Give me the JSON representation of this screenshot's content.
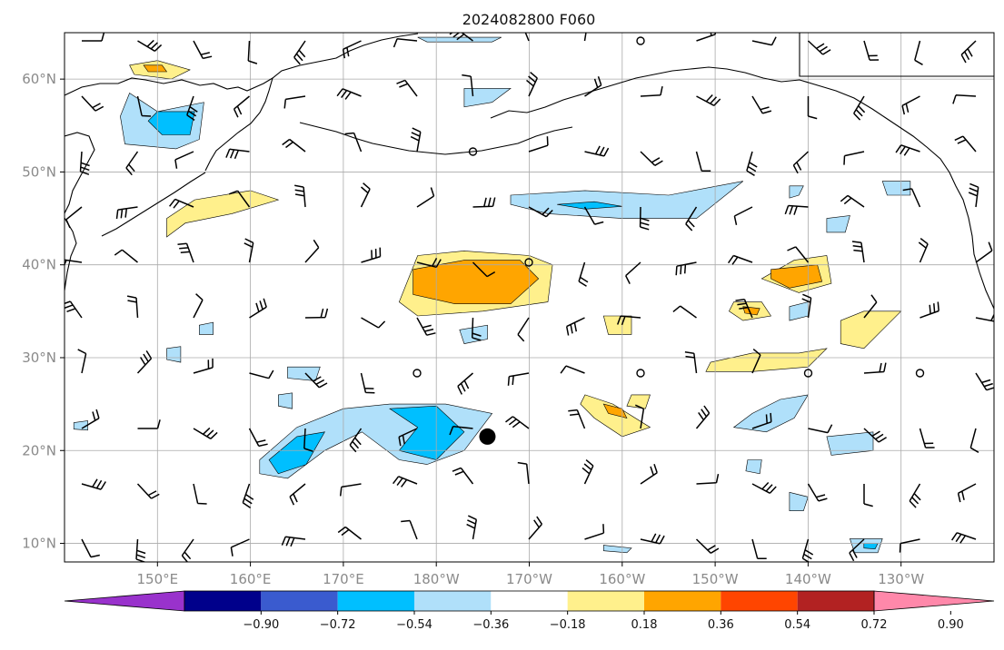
{
  "title": "2024082800 F060",
  "axes": {
    "lat_labels": [
      "10°N",
      "20°N",
      "30°N",
      "40°N",
      "50°N",
      "60°N"
    ],
    "lat_values": [
      10,
      20,
      30,
      40,
      50,
      60
    ],
    "lon_labels": [
      "150°E",
      "160°E",
      "170°E",
      "180°W",
      "170°W",
      "160°W",
      "150°W",
      "140°W",
      "130°W"
    ],
    "lon_values": [
      150,
      160,
      170,
      180,
      190,
      200,
      210,
      220,
      230
    ],
    "lon_range": [
      140,
      240
    ],
    "lat_range": [
      8,
      65
    ],
    "grid": true
  },
  "colorbar": {
    "tick_labels": [
      "−0.90",
      "−0.72",
      "−0.54",
      "−0.36",
      "−0.18",
      "0.18",
      "0.36",
      "0.54",
      "0.72",
      "0.90"
    ],
    "colors": [
      "#9932cc",
      "#00008b",
      "#3a5bcf",
      "#00bfff",
      "#b0e0fa",
      "#ffffff",
      "#fff08c",
      "#ffa500",
      "#ff4500",
      "#b22222",
      "#ff88aa"
    ],
    "extend": "both"
  },
  "markers": {
    "hurricane": {
      "lon": 185.5,
      "lat": 21.5
    }
  },
  "contours": [
    {
      "color": "#b0e0fa",
      "pts": [
        [
          147,
          58.5
        ],
        [
          150,
          56.5
        ],
        [
          155,
          57.5
        ],
        [
          154.5,
          53.5
        ],
        [
          152,
          52.5
        ],
        [
          146.5,
          53
        ],
        [
          146,
          56
        ]
      ]
    },
    {
      "color": "#00bfff",
      "pts": [
        [
          150,
          56.5
        ],
        [
          154,
          56.5
        ],
        [
          153.5,
          54
        ],
        [
          150.5,
          54
        ],
        [
          149,
          55.5
        ]
      ]
    },
    {
      "color": "#fff08c",
      "pts": [
        [
          147,
          61.5
        ],
        [
          150,
          62
        ],
        [
          153.5,
          61
        ],
        [
          151.5,
          60
        ],
        [
          147.5,
          60.5
        ]
      ]
    },
    {
      "color": "#ffa500",
      "pts": [
        [
          148.5,
          61.5
        ],
        [
          150.5,
          61.5
        ],
        [
          151,
          60.8
        ],
        [
          149,
          60.8
        ]
      ]
    },
    {
      "color": "#fff08c",
      "pts": [
        [
          151,
          45
        ],
        [
          154,
          47
        ],
        [
          160,
          48
        ],
        [
          163,
          47
        ],
        [
          158,
          45.5
        ],
        [
          153,
          44.5
        ],
        [
          151,
          43
        ]
      ]
    },
    {
      "color": "#fff08c",
      "pts": [
        [
          178,
          41
        ],
        [
          183,
          41.5
        ],
        [
          190,
          41
        ],
        [
          192.5,
          40
        ],
        [
          192,
          36
        ],
        [
          185,
          35
        ],
        [
          178,
          34.5
        ],
        [
          176,
          36
        ]
      ]
    },
    {
      "color": "#ffa500",
      "pts": [
        [
          177.5,
          39.5
        ],
        [
          183,
          40.5
        ],
        [
          189,
          40.5
        ],
        [
          191,
          38.5
        ],
        [
          188,
          35.8
        ],
        [
          182,
          35.8
        ],
        [
          177.5,
          36.8
        ]
      ]
    },
    {
      "color": "#b0e0fa",
      "pts": [
        [
          188,
          47.5
        ],
        [
          196,
          48
        ],
        [
          205,
          47.5
        ],
        [
          213,
          49
        ],
        [
          208,
          45
        ],
        [
          200,
          45
        ],
        [
          192,
          45.5
        ],
        [
          188,
          46.5
        ]
      ]
    },
    {
      "color": "#00bfff",
      "pts": [
        [
          193,
          46.5
        ],
        [
          197,
          46.8
        ],
        [
          200,
          46.3
        ],
        [
          196,
          46
        ]
      ]
    },
    {
      "color": "#b0e0fa",
      "pts": [
        [
          161,
          19
        ],
        [
          165,
          22.5
        ],
        [
          170,
          24.5
        ],
        [
          175,
          25
        ],
        [
          181,
          25
        ],
        [
          186,
          24
        ],
        [
          183,
          20
        ],
        [
          179,
          18.5
        ],
        [
          176,
          19
        ],
        [
          172,
          22
        ],
        [
          168,
          20
        ],
        [
          164,
          17
        ],
        [
          161,
          17.5
        ]
      ]
    },
    {
      "color": "#00bfff",
      "pts": [
        [
          162,
          19
        ],
        [
          165,
          21.5
        ],
        [
          168,
          22
        ],
        [
          166,
          18.5
        ],
        [
          163,
          17.5
        ]
      ]
    },
    {
      "color": "#00bfff",
      "pts": [
        [
          175,
          24.5
        ],
        [
          180,
          24.8
        ],
        [
          183,
          22
        ],
        [
          180,
          19
        ],
        [
          176,
          20
        ],
        [
          178,
          22.5
        ]
      ]
    },
    {
      "color": "#fff08c",
      "pts": [
        [
          218.5,
          40.5
        ],
        [
          222,
          41
        ],
        [
          222.5,
          38
        ],
        [
          219,
          37
        ],
        [
          215,
          38.5
        ]
      ]
    },
    {
      "color": "#ffa500",
      "pts": [
        [
          216,
          39.5
        ],
        [
          221,
          40
        ],
        [
          221.5,
          38.2
        ],
        [
          218,
          37.5
        ],
        [
          216,
          38.5
        ]
      ]
    },
    {
      "color": "#fff08c",
      "pts": [
        [
          212,
          36
        ],
        [
          215,
          36
        ],
        [
          216,
          34.5
        ],
        [
          213,
          34
        ],
        [
          211.5,
          35
        ]
      ]
    },
    {
      "color": "#ffa500",
      "pts": [
        [
          213,
          35.5
        ],
        [
          214.8,
          35.3
        ],
        [
          214.5,
          34.6
        ],
        [
          213.2,
          34.8
        ]
      ]
    },
    {
      "color": "#fff08c",
      "pts": [
        [
          198,
          34.5
        ],
        [
          201,
          34.5
        ],
        [
          201,
          32.5
        ],
        [
          198.5,
          32.5
        ]
      ]
    },
    {
      "color": "#fff08c",
      "pts": [
        [
          196,
          26
        ],
        [
          199,
          25
        ],
        [
          203,
          22.5
        ],
        [
          200,
          21.5
        ],
        [
          197,
          23.5
        ],
        [
          195.5,
          25
        ]
      ]
    },
    {
      "color": "#ffa500",
      "pts": [
        [
          198,
          25
        ],
        [
          200,
          24.5
        ],
        [
          200.5,
          23.5
        ],
        [
          198.5,
          24
        ]
      ]
    },
    {
      "color": "#fff08c",
      "pts": [
        [
          201,
          26
        ],
        [
          203,
          26
        ],
        [
          202.5,
          24.5
        ],
        [
          200.5,
          24.8
        ]
      ]
    },
    {
      "color": "#fff08c",
      "pts": [
        [
          209.5,
          29.5
        ],
        [
          214,
          30.5
        ],
        [
          219,
          30.5
        ],
        [
          222,
          31
        ],
        [
          220,
          29
        ],
        [
          214,
          28.5
        ],
        [
          209,
          28.5
        ]
      ]
    },
    {
      "color": "#fff08c",
      "pts": [
        [
          226,
          35
        ],
        [
          230,
          35
        ],
        [
          228,
          33
        ],
        [
          226,
          31
        ],
        [
          223.5,
          31.5
        ],
        [
          223.5,
          34
        ]
      ]
    },
    {
      "color": "#b0e0fa",
      "pts": [
        [
          217,
          25.5
        ],
        [
          220,
          26
        ],
        [
          218.5,
          23.5
        ],
        [
          215.5,
          22
        ],
        [
          212,
          22.5
        ],
        [
          214,
          24
        ]
      ]
    },
    {
      "color": "#b0e0fa",
      "pts": [
        [
          222,
          21.5
        ],
        [
          227,
          22
        ],
        [
          227,
          20
        ],
        [
          222.5,
          19.5
        ]
      ]
    },
    {
      "color": "#b0e0fa",
      "pts": [
        [
          182.5,
          33
        ],
        [
          185.5,
          33.5
        ],
        [
          185.5,
          32
        ],
        [
          183,
          31.5
        ]
      ]
    },
    {
      "color": "#b0e0fa",
      "pts": [
        [
          183,
          59
        ],
        [
          188,
          59
        ],
        [
          186,
          57.5
        ],
        [
          183,
          57
        ]
      ]
    },
    {
      "color": "#b0e0fa",
      "pts": [
        [
          228,
          49
        ],
        [
          231,
          49
        ],
        [
          231,
          47.5
        ],
        [
          228.5,
          47.5
        ]
      ]
    },
    {
      "color": "#b0e0fa",
      "pts": [
        [
          218,
          48.5
        ],
        [
          219.5,
          48.5
        ],
        [
          219,
          47.5
        ],
        [
          218,
          47.2
        ]
      ]
    },
    {
      "color": "#b0e0fa",
      "pts": [
        [
          222,
          45
        ],
        [
          224.5,
          45.3
        ],
        [
          224,
          43.5
        ],
        [
          222,
          43.5
        ]
      ]
    },
    {
      "color": "#b0e0fa",
      "pts": [
        [
          218,
          35.5
        ],
        [
          220,
          36
        ],
        [
          220,
          34.5
        ],
        [
          218,
          34
        ]
      ]
    },
    {
      "color": "#b0e0fa",
      "pts": [
        [
          164,
          29
        ],
        [
          167.5,
          29
        ],
        [
          167,
          27.5
        ],
        [
          164,
          27.8
        ]
      ]
    },
    {
      "color": "#b0e0fa",
      "pts": [
        [
          163,
          26
        ],
        [
          164.5,
          26.2
        ],
        [
          164.5,
          24.5
        ],
        [
          163,
          24.8
        ]
      ]
    },
    {
      "color": "#b0e0fa",
      "pts": [
        [
          141,
          23
        ],
        [
          142.5,
          23.2
        ],
        [
          142.5,
          22.2
        ],
        [
          141,
          22.3
        ]
      ]
    },
    {
      "color": "#b0e0fa",
      "pts": [
        [
          154.5,
          33.5
        ],
        [
          156,
          33.8
        ],
        [
          156,
          32.5
        ],
        [
          154.5,
          32.5
        ]
      ]
    },
    {
      "color": "#b0e0fa",
      "pts": [
        [
          151,
          31
        ],
        [
          152.5,
          31.2
        ],
        [
          152.5,
          29.5
        ],
        [
          151,
          29.8
        ]
      ]
    },
    {
      "color": "#b0e0fa",
      "pts": [
        [
          213.5,
          19
        ],
        [
          215,
          19
        ],
        [
          214.8,
          17.5
        ],
        [
          213.3,
          17.8
        ]
      ]
    },
    {
      "color": "#b0e0fa",
      "pts": [
        [
          218,
          15.5
        ],
        [
          220,
          15
        ],
        [
          219.5,
          13.5
        ],
        [
          218,
          13.5
        ]
      ]
    },
    {
      "color": "#b0e0fa",
      "pts": [
        [
          224.5,
          10.5
        ],
        [
          228,
          10.5
        ],
        [
          227.5,
          9
        ],
        [
          225,
          9
        ]
      ]
    },
    {
      "color": "#00bfff",
      "pts": [
        [
          226,
          10
        ],
        [
          227.5,
          10
        ],
        [
          227.2,
          9.4
        ],
        [
          226,
          9.5
        ]
      ]
    },
    {
      "color": "#b0e0fa",
      "pts": [
        [
          198,
          9.8
        ],
        [
          201,
          9.5
        ],
        [
          200.5,
          9
        ],
        [
          198,
          9.2
        ]
      ]
    },
    {
      "color": "#b0e0fa",
      "pts": [
        [
          178,
          64.5
        ],
        [
          187,
          64.5
        ],
        [
          186,
          64
        ],
        [
          179,
          64
        ]
      ]
    }
  ]
}
